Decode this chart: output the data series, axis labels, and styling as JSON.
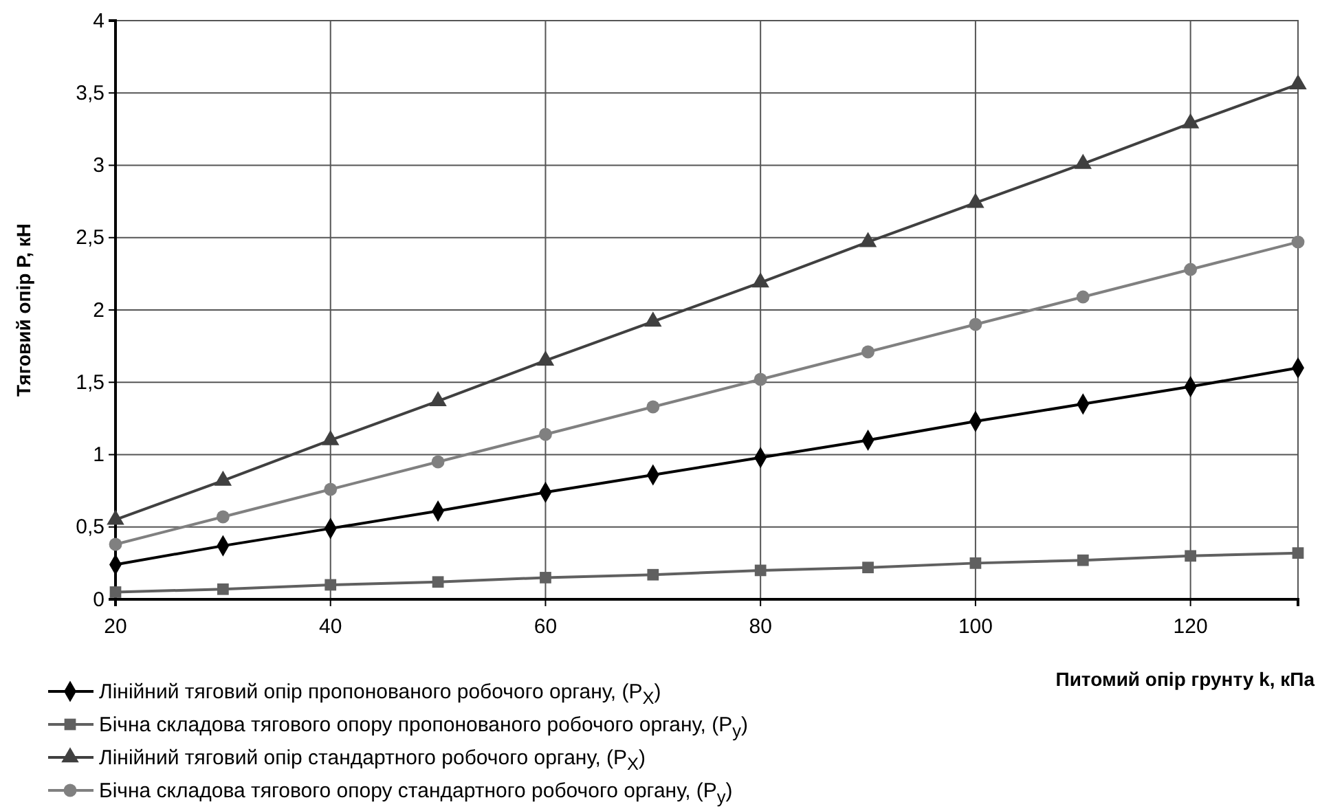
{
  "chart_data": {
    "type": "line",
    "xlabel": "Питомий опір грунту k, кПа",
    "ylabel": "Тяговий опір P, кН",
    "x": [
      20,
      30,
      40,
      50,
      60,
      70,
      80,
      90,
      100,
      110,
      120,
      130
    ],
    "xlim": [
      20,
      130
    ],
    "xticks": [
      20,
      40,
      60,
      80,
      100,
      120
    ],
    "ylim": [
      0,
      4
    ],
    "yticks": [
      0,
      {
        "value": 0.5,
        "label": "0,5"
      },
      1,
      {
        "value": 1.5,
        "label": "1,5"
      },
      2,
      {
        "value": 2.5,
        "label": "2,5"
      },
      3,
      {
        "value": 3.5,
        "label": "3,5"
      },
      4
    ],
    "grid": true,
    "legend": "bottom left",
    "line_style": "solid",
    "series": [
      {
        "name": "Лінійний тяговий опір пропонованого робочого органу, (P$_{X}$)",
        "color": "#000000",
        "marker": "diamond",
        "values": [
          0.24,
          0.37,
          0.49,
          0.61,
          0.74,
          0.86,
          0.98,
          1.1,
          1.23,
          1.35,
          1.47,
          1.6
        ]
      },
      {
        "name": "Бічна складова тягового опору пропонованого робочого органу, (P$_{y}$)",
        "color": "#606060",
        "marker": "square",
        "values": [
          0.05,
          0.07,
          0.1,
          0.12,
          0.15,
          0.17,
          0.2,
          0.22,
          0.25,
          0.27,
          0.3,
          0.32
        ]
      },
      {
        "name": "Лінійний тяговий опір стандартного робочого органу, (P$_{X}$)",
        "color": "#404040",
        "marker": "triangle",
        "values": [
          0.55,
          0.82,
          1.1,
          1.37,
          1.65,
          1.92,
          2.19,
          2.47,
          2.74,
          3.01,
          3.29,
          3.56
        ]
      },
      {
        "name": "Бічна складова тягового опору стандартного робочого органу, (P$_{y}$)",
        "color": "#808080",
        "marker": "circle",
        "values": [
          0.38,
          0.57,
          0.76,
          0.95,
          1.14,
          1.33,
          1.52,
          1.71,
          1.9,
          2.09,
          2.28,
          2.47
        ]
      }
    ]
  }
}
